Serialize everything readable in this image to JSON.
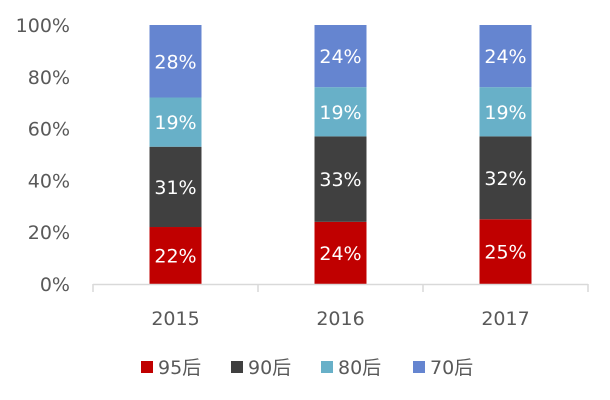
{
  "chart_data": {
    "type": "bar",
    "stacked": true,
    "percent_stacked": true,
    "categories": [
      "2015",
      "2016",
      "2017"
    ],
    "series": [
      {
        "name": "95后",
        "color": "#C00000",
        "values": [
          22,
          24,
          25
        ]
      },
      {
        "name": "90后",
        "color": "#404040",
        "values": [
          31,
          33,
          32
        ]
      },
      {
        "name": "80后",
        "color": "#68B0C8",
        "values": [
          19,
          19,
          19
        ]
      },
      {
        "name": "70后",
        "color": "#6585D0",
        "values": [
          28,
          24,
          24
        ]
      }
    ],
    "data_labels": true,
    "label_format": "{v}%",
    "ylim": [
      0,
      100
    ],
    "yticks": [
      "0%",
      "20%",
      "40%",
      "60%",
      "80%",
      "100%"
    ],
    "grid": false,
    "legend_position": "bottom",
    "axis_color": "#D9D9D9",
    "text_color": "#595959"
  }
}
